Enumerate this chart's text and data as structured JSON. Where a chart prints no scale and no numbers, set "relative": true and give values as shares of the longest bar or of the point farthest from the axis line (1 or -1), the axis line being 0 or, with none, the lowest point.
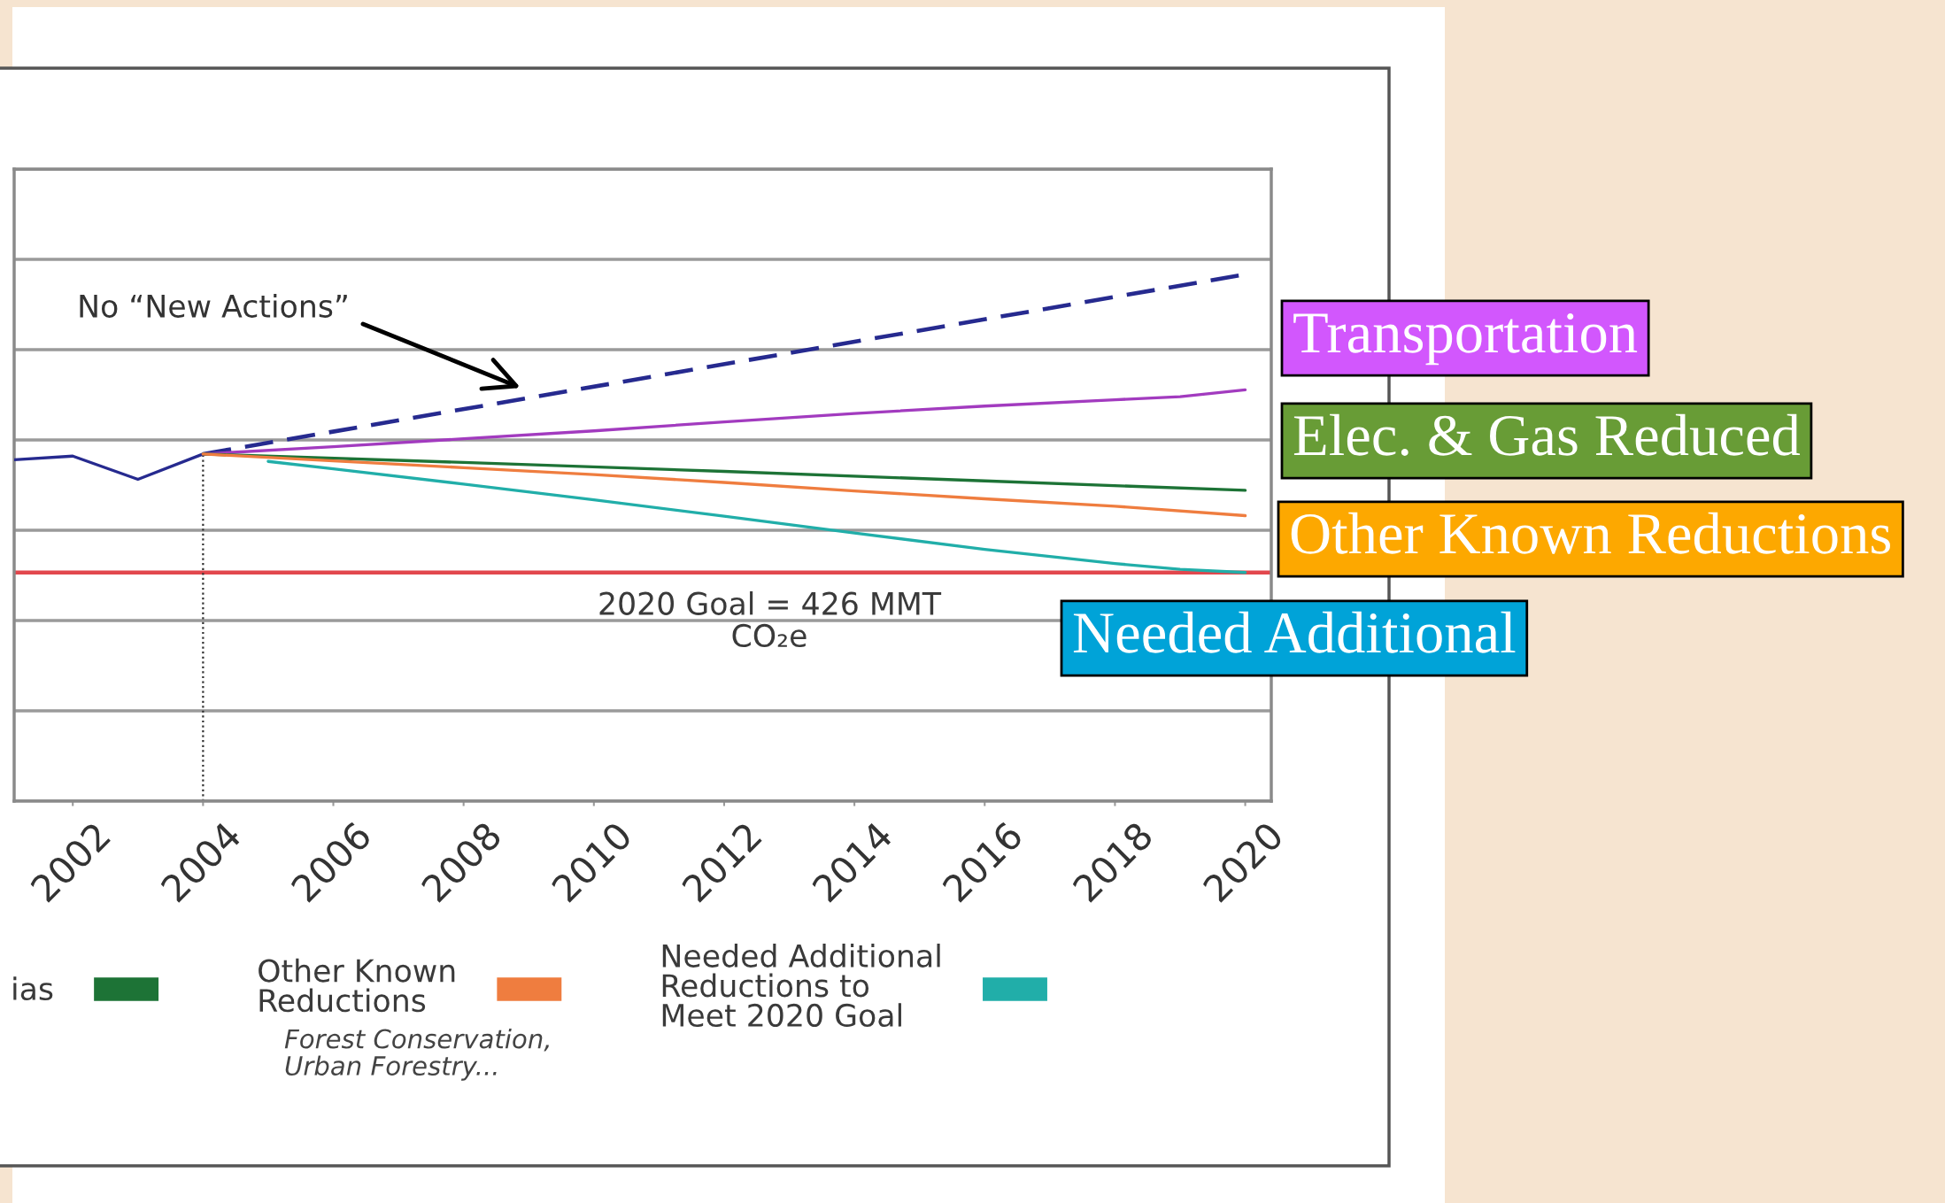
{
  "chart_data": {
    "type": "line",
    "relative": true,
    "xlim": [
      2001.1,
      2020.4
    ],
    "xticks": [
      2002,
      2004,
      2006,
      2008,
      2010,
      2012,
      2014,
      2016,
      2018,
      2020
    ],
    "grid": "y",
    "legend": "bottom",
    "series": [
      {
        "color": "#262a8f",
        "x": [
          2001.1,
          2002,
          2003,
          2004
        ],
        "values": [
          0.648,
          0.655,
          0.611,
          0.659
        ]
      },
      {
        "color": "#262a8f",
        "line_style": "dashed",
        "x": [
          2004,
          2020
        ],
        "values": [
          0.659,
          1.0
        ]
      },
      {
        "color": "#a23bbf",
        "x": [
          2004,
          2006,
          2008,
          2010,
          2012,
          2014,
          2016,
          2018,
          2019,
          2020
        ],
        "values": [
          0.659,
          0.673,
          0.688,
          0.703,
          0.72,
          0.736,
          0.75,
          0.762,
          0.768,
          0.781
        ]
      },
      {
        "name": "ias",
        "color": "#1d7336",
        "x": [
          2004,
          2008,
          2012,
          2016,
          2020
        ],
        "values": [
          0.659,
          0.643,
          0.626,
          0.608,
          0.59
        ]
      },
      {
        "name": "Other Known\nReductions",
        "color": "#ef7d3f",
        "x": [
          2004,
          2006,
          2008,
          2010,
          2012,
          2014,
          2016,
          2018,
          2020
        ],
        "values": [
          0.659,
          0.646,
          0.633,
          0.62,
          0.605,
          0.589,
          0.574,
          0.56,
          0.542
        ]
      },
      {
        "name": "Needed Additional\nReductions to\nMeet 2020 Goal",
        "color": "#21aea9",
        "x": [
          2005,
          2006,
          2008,
          2010,
          2012,
          2014,
          2016,
          2018,
          2019,
          2020
        ],
        "values": [
          0.645,
          0.631,
          0.602,
          0.572,
          0.541,
          0.509,
          0.478,
          0.451,
          0.44,
          0.434
        ]
      }
    ],
    "ref_lines": [
      {
        "axis": "y",
        "value": 0.434,
        "color": "#e2474d"
      },
      {
        "axis": "x",
        "value": 2004,
        "line_style": "dotted",
        "color": "#333333"
      }
    ],
    "annotations": [
      "No “New Actions”",
      "2020 Goal = 426 MMT\nCO₂e",
      "Forest Conservation,\nUrban Forestry...",
      "Transportation",
      "Elec. & Gas Reduced",
      "Other Known Reductions",
      "Needed Additional"
    ]
  }
}
